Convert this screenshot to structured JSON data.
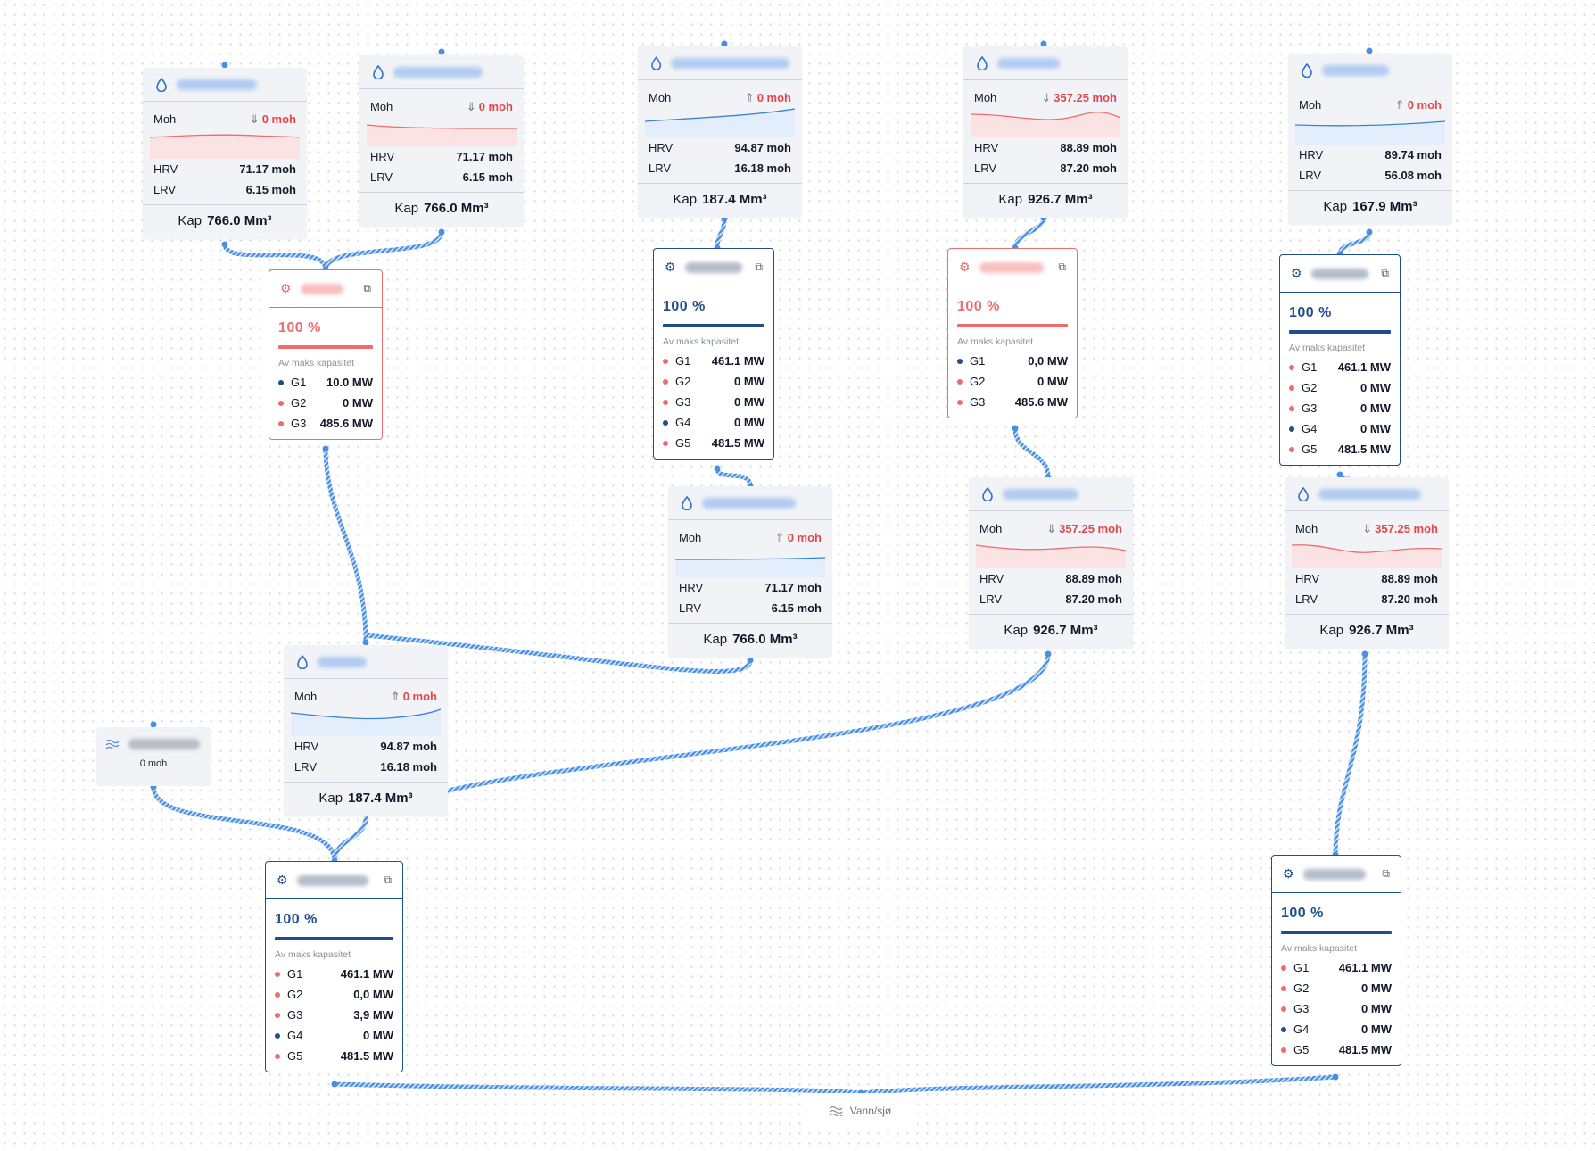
{
  "labels": {
    "moh": "Moh",
    "hrv": "HRV",
    "lrv": "LRV",
    "kap": "Kap",
    "capacity_caption": "Av maks kapasitet"
  },
  "colors": {
    "primary": "#1f4e8c",
    "alert": "#ee6b6e",
    "edge": "#4a90e2",
    "card_bg": "#f1f3f7"
  },
  "reservoirs": [
    {
      "id": "r1",
      "level": "0 moh",
      "trend": "down",
      "hrv": "71.17 moh",
      "lrv": "6.15 moh",
      "kap": "766.0 Mm³"
    },
    {
      "id": "r2",
      "level": "0 moh",
      "trend": "down",
      "hrv": "71.17 moh",
      "lrv": "6.15 moh",
      "kap": "766.0 Mm³"
    },
    {
      "id": "r3",
      "level": "0 moh",
      "trend": "up",
      "hrv": "94.87 moh",
      "lrv": "16.18 moh",
      "kap": "187.4 Mm³"
    },
    {
      "id": "r4",
      "level": "357.25 moh",
      "trend": "down",
      "hrv": "88.89 moh",
      "lrv": "87.20 moh",
      "kap": "926.7 Mm³"
    },
    {
      "id": "r5",
      "level": "0 moh",
      "trend": "up",
      "hrv": "89.74 moh",
      "lrv": "56.08 moh",
      "kap": "167.9 Mm³"
    },
    {
      "id": "r6",
      "level": "0 moh",
      "trend": "up",
      "hrv": "71.17 moh",
      "lrv": "6.15 moh",
      "kap": "766.0 Mm³"
    },
    {
      "id": "r7",
      "level": "357.25 moh",
      "trend": "down",
      "hrv": "88.89 moh",
      "lrv": "87.20 moh",
      "kap": "926.7 Mm³"
    },
    {
      "id": "r8",
      "level": "357.25 moh",
      "trend": "down",
      "hrv": "88.89 moh",
      "lrv": "87.20 moh",
      "kap": "926.7 Mm³"
    },
    {
      "id": "r9",
      "level": "0 moh",
      "trend": "up",
      "hrv": "94.87 moh",
      "lrv": "16.18 moh",
      "kap": "187.4 Mm³"
    }
  ],
  "plants": [
    {
      "id": "p1",
      "status": "alert",
      "percent": "100 %",
      "generators": [
        {
          "name": "G1",
          "value": "10.0 MW",
          "active": true
        },
        {
          "name": "G2",
          "value": "0 MW",
          "active": false
        },
        {
          "name": "G3",
          "value": "485.6 MW",
          "active": false
        }
      ]
    },
    {
      "id": "p2",
      "status": "normal",
      "percent": "100 %",
      "generators": [
        {
          "name": "G1",
          "value": "461.1 MW",
          "active": false
        },
        {
          "name": "G2",
          "value": "0 MW",
          "active": false
        },
        {
          "name": "G3",
          "value": "0 MW",
          "active": false
        },
        {
          "name": "G4",
          "value": "0 MW",
          "active": true
        },
        {
          "name": "G5",
          "value": "481.5 MW",
          "active": false
        }
      ]
    },
    {
      "id": "p3",
      "status": "alert",
      "percent": "100 %",
      "generators": [
        {
          "name": "G1",
          "value": "0,0 MW",
          "active": true
        },
        {
          "name": "G2",
          "value": "0 MW",
          "active": false
        },
        {
          "name": "G3",
          "value": "485.6 MW",
          "active": false
        }
      ]
    },
    {
      "id": "p4",
      "status": "normal",
      "percent": "100 %",
      "generators": [
        {
          "name": "G1",
          "value": "461.1 MW",
          "active": false
        },
        {
          "name": "G2",
          "value": "0 MW",
          "active": false
        },
        {
          "name": "G3",
          "value": "0 MW",
          "active": false
        },
        {
          "name": "G4",
          "value": "0 MW",
          "active": true
        },
        {
          "name": "G5",
          "value": "481.5 MW",
          "active": false
        }
      ]
    },
    {
      "id": "p5",
      "status": "normal",
      "percent": "100 %",
      "generators": [
        {
          "name": "G1",
          "value": "461.1 MW",
          "active": false
        },
        {
          "name": "G2",
          "value": "0,0 MW",
          "active": false
        },
        {
          "name": "G3",
          "value": "3,9 MW",
          "active": false
        },
        {
          "name": "G4",
          "value": "0 MW",
          "active": true
        },
        {
          "name": "G5",
          "value": "481.5 MW",
          "active": false
        }
      ]
    },
    {
      "id": "p6",
      "status": "normal",
      "percent": "100 %",
      "generators": [
        {
          "name": "G1",
          "value": "461.1 MW",
          "active": false
        },
        {
          "name": "G2",
          "value": "0 MW",
          "active": false
        },
        {
          "name": "G3",
          "value": "0 MW",
          "active": false
        },
        {
          "name": "G4",
          "value": "0 MW",
          "active": true
        },
        {
          "name": "G5",
          "value": "481.5 MW",
          "active": false
        }
      ]
    }
  ],
  "inflow": {
    "value": "0 moh"
  },
  "sea": {
    "label": "Vann/sjø"
  }
}
